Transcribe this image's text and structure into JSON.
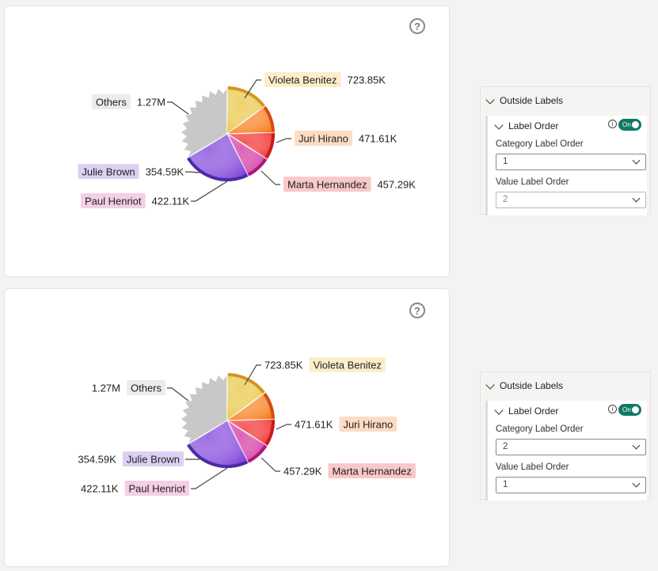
{
  "slices": [
    {
      "category": "Violeta Benitez",
      "value": "723.85K",
      "number": 723.85,
      "color": "#e8c23a",
      "rim": "#d5951e",
      "badge": "#fbeec9"
    },
    {
      "category": "Juri Hirano",
      "value": "471.61K",
      "number": 471.61,
      "color": "#f6760f",
      "rim": "#d84a10",
      "badge": "#fbdcc4"
    },
    {
      "category": "Marta Hernandez",
      "value": "457.29K",
      "number": 457.29,
      "color": "#f02020",
      "rim": "#c81b1b",
      "badge": "#f9c8c8"
    },
    {
      "category": "Paul Henriot",
      "value": "422.11K",
      "number": 422.11,
      "color": "#d02a9c",
      "rim": "#a8197d",
      "badge": "#f4cfe6"
    },
    {
      "category": "Julie Brown",
      "value": "354.59K",
      "number": 354.59,
      "color": "#7a3bd8",
      "rim": "#4c2aa8",
      "badge": "#ddd0f3"
    },
    {
      "category": "Others",
      "value": "1.27M",
      "number": 1270,
      "color": "#c8c8c8",
      "rim": "#b5b5b5",
      "badge": "#ececec"
    }
  ],
  "chart_data": [
    {
      "type": "pie",
      "categories": [
        "Violeta Benitez",
        "Juri Hirano",
        "Marta Hernandez",
        "Paul Henriot",
        "Julie Brown",
        "Others"
      ],
      "values": [
        723.85,
        471.61,
        457.29,
        422.11,
        354.59,
        1270
      ],
      "label_order": "category-first"
    },
    {
      "type": "pie",
      "categories": [
        "Violeta Benitez",
        "Juri Hirano",
        "Marta Hernandez",
        "Paul Henriot",
        "Julie Brown",
        "Others"
      ],
      "values": [
        723.85,
        471.61,
        457.29,
        422.11,
        354.59,
        1270
      ],
      "label_order": "value-first"
    }
  ],
  "help_icon_glyph": "?",
  "panels": [
    {
      "title": "Outside Labels",
      "sub_title": "Label Order",
      "info_glyph": "i",
      "toggle": "On",
      "category_label": "Category Label Order",
      "category_value": "1",
      "value_label": "Value Label Order",
      "value_value": "2",
      "disabled_field": "value"
    },
    {
      "title": "Outside Labels",
      "sub_title": "Label Order",
      "info_glyph": "i",
      "toggle": "On",
      "category_label": "Category Label Order",
      "category_value": "2",
      "value_label": "Value Label Order",
      "value_value": "1",
      "disabled_field": "none"
    }
  ]
}
